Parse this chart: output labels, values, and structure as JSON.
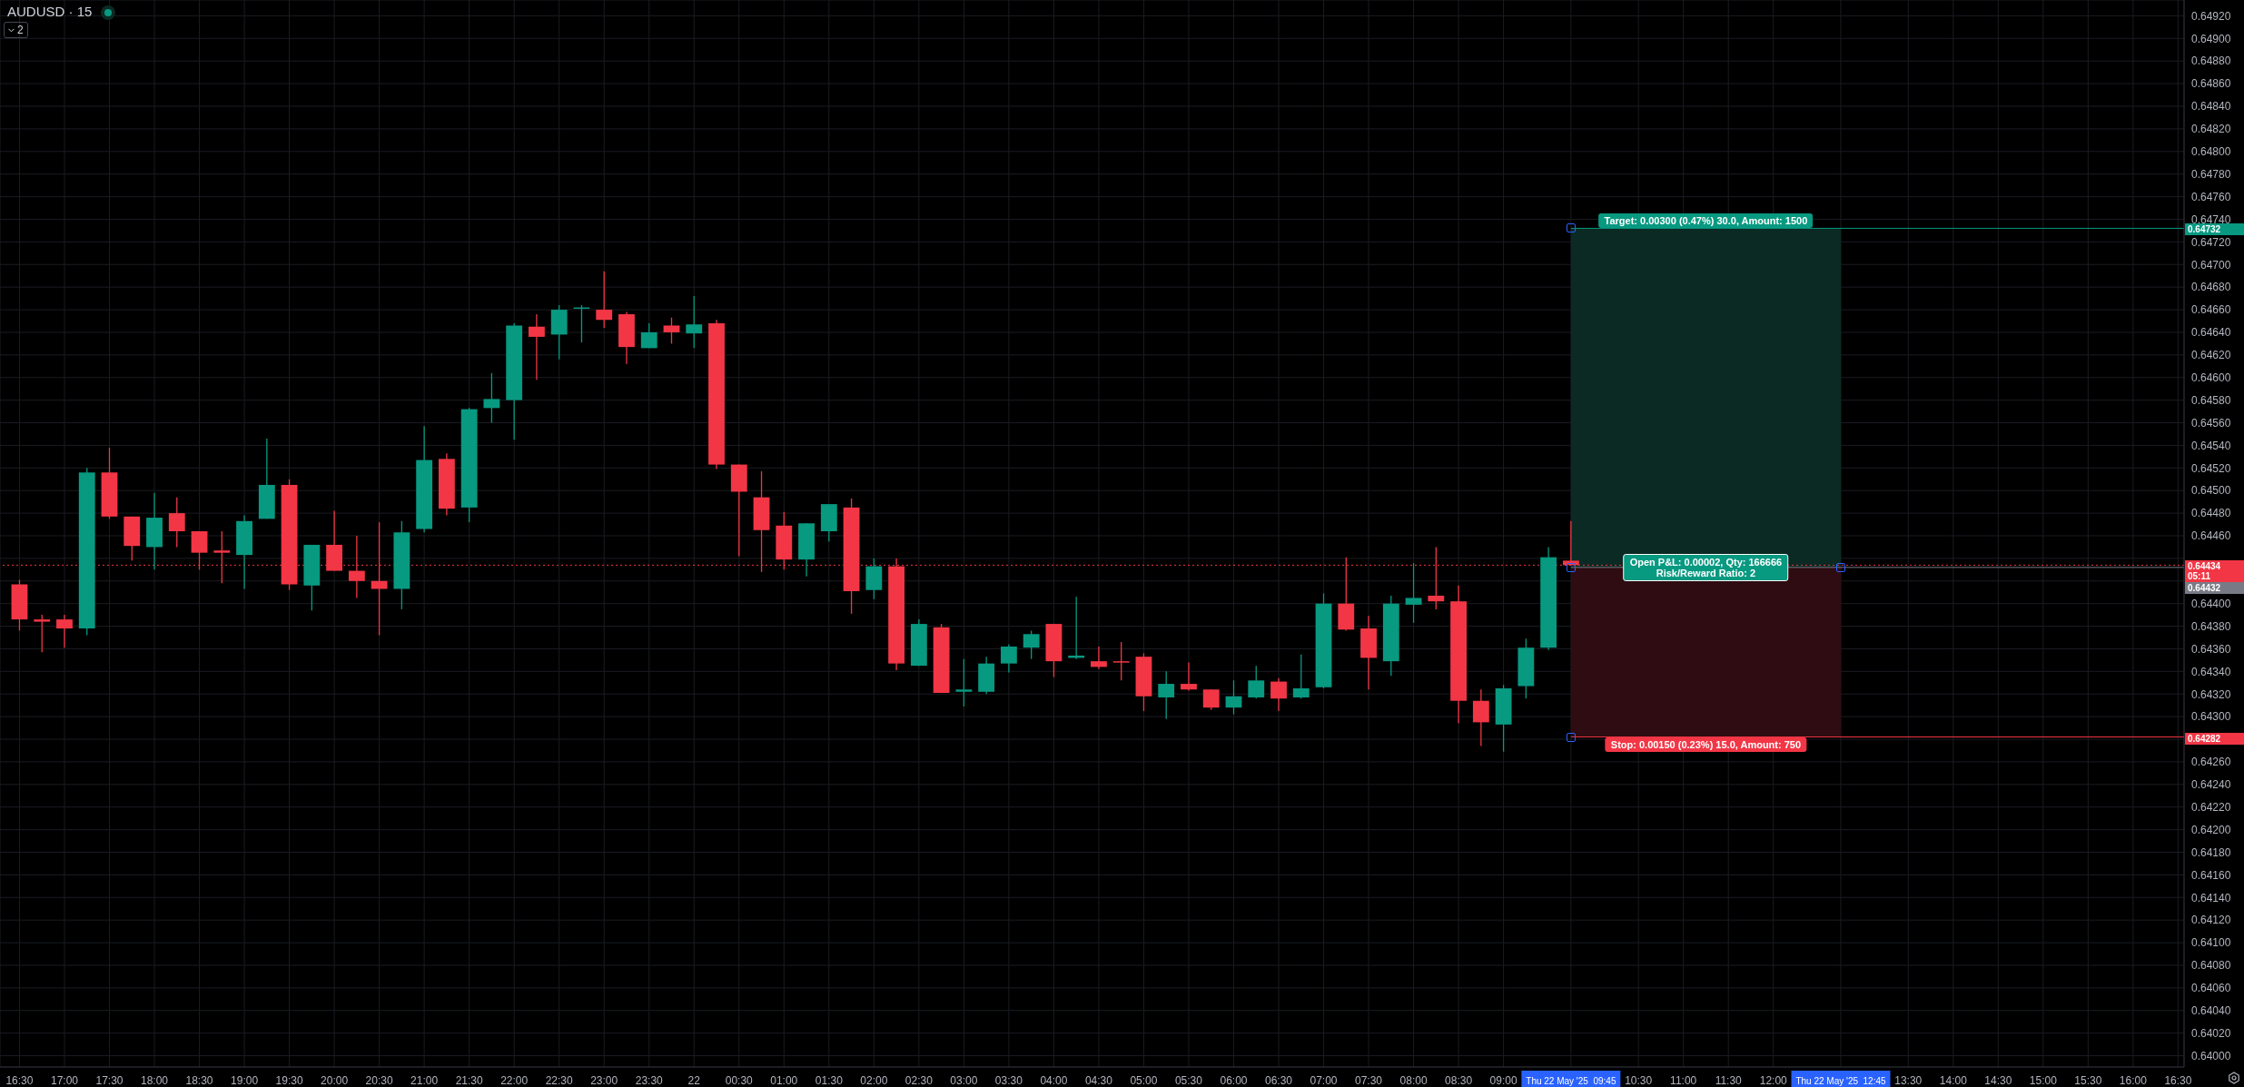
{
  "chart_data": {
    "type": "candlestick",
    "title": "AUDUSD · 15",
    "x": [
      "2025-05-21T16:30",
      "2025-05-21T16:45",
      "2025-05-21T17:00",
      "2025-05-21T17:15",
      "2025-05-21T17:30",
      "2025-05-21T17:45",
      "2025-05-21T18:00",
      "2025-05-21T18:15",
      "2025-05-21T18:30",
      "2025-05-21T18:45",
      "2025-05-21T19:00",
      "2025-05-21T19:15",
      "2025-05-21T19:30",
      "2025-05-21T19:45",
      "2025-05-21T20:00",
      "2025-05-21T20:15",
      "2025-05-21T20:30",
      "2025-05-21T20:45",
      "2025-05-21T21:00",
      "2025-05-21T21:15",
      "2025-05-21T21:30",
      "2025-05-21T21:45",
      "2025-05-21T22:00",
      "2025-05-21T22:15",
      "2025-05-21T22:30",
      "2025-05-21T22:45",
      "2025-05-21T23:00",
      "2025-05-21T23:15",
      "2025-05-21T23:30",
      "2025-05-21T23:45",
      "2025-05-22T00:00",
      "2025-05-22T00:15",
      "2025-05-22T00:30",
      "2025-05-22T00:45",
      "2025-05-22T01:00",
      "2025-05-22T01:15",
      "2025-05-22T01:30",
      "2025-05-22T01:45",
      "2025-05-22T02:00",
      "2025-05-22T02:15",
      "2025-05-22T02:30",
      "2025-05-22T02:45",
      "2025-05-22T03:00",
      "2025-05-22T03:15",
      "2025-05-22T03:30",
      "2025-05-22T03:45",
      "2025-05-22T04:00",
      "2025-05-22T04:15",
      "2025-05-22T04:30",
      "2025-05-22T04:45",
      "2025-05-22T05:00",
      "2025-05-22T05:15",
      "2025-05-22T05:30",
      "2025-05-22T05:45",
      "2025-05-22T06:00",
      "2025-05-22T06:15",
      "2025-05-22T06:30",
      "2025-05-22T06:45",
      "2025-05-22T07:00",
      "2025-05-22T07:15",
      "2025-05-22T07:30",
      "2025-05-22T07:45",
      "2025-05-22T08:00",
      "2025-05-22T08:15",
      "2025-05-22T08:30",
      "2025-05-22T08:45",
      "2025-05-22T09:00",
      "2025-05-22T09:15",
      "2025-05-22T09:30",
      "2025-05-22T09:45"
    ],
    "ohlc": [
      [
        0.64417,
        0.64421,
        0.64376,
        0.64386
      ],
      [
        0.64386,
        0.6439,
        0.64357,
        0.64384
      ],
      [
        0.64386,
        0.6439,
        0.64361,
        0.64378
      ],
      [
        0.64378,
        0.6452,
        0.64372,
        0.64516
      ],
      [
        0.64516,
        0.64538,
        0.64475,
        0.64477
      ],
      [
        0.64477,
        0.64477,
        0.64438,
        0.64451
      ],
      [
        0.6445,
        0.64498,
        0.6443,
        0.64476
      ],
      [
        0.6448,
        0.64494,
        0.6445,
        0.64464
      ],
      [
        0.64464,
        0.64464,
        0.6443,
        0.64445
      ],
      [
        0.64447,
        0.64464,
        0.64418,
        0.64445
      ],
      [
        0.64443,
        0.64478,
        0.64413,
        0.64473
      ],
      [
        0.64475,
        0.64546,
        0.64475,
        0.64505
      ],
      [
        0.64505,
        0.6451,
        0.64412,
        0.64417
      ],
      [
        0.64416,
        0.64452,
        0.64394,
        0.64452
      ],
      [
        0.64452,
        0.64482,
        0.64429,
        0.64429
      ],
      [
        0.64429,
        0.6446,
        0.64405,
        0.6442
      ],
      [
        0.6442,
        0.64472,
        0.64372,
        0.64413
      ],
      [
        0.64413,
        0.64473,
        0.64395,
        0.64463
      ],
      [
        0.64466,
        0.64557,
        0.64463,
        0.64527
      ],
      [
        0.64528,
        0.64533,
        0.64478,
        0.64484
      ],
      [
        0.64485,
        0.64573,
        0.64472,
        0.64572
      ],
      [
        0.64573,
        0.64604,
        0.6456,
        0.64581
      ],
      [
        0.6458,
        0.64648,
        0.64545,
        0.64646
      ],
      [
        0.64645,
        0.64656,
        0.64598,
        0.64636
      ],
      [
        0.64638,
        0.64664,
        0.64616,
        0.6466
      ],
      [
        0.64661,
        0.64664,
        0.64631,
        0.64662
      ],
      [
        0.6466,
        0.64694,
        0.64644,
        0.64651
      ],
      [
        0.64656,
        0.64658,
        0.64612,
        0.64627
      ],
      [
        0.64626,
        0.64648,
        0.64626,
        0.6464
      ],
      [
        0.64646,
        0.64653,
        0.6463,
        0.6464
      ],
      [
        0.64639,
        0.64672,
        0.64626,
        0.64647
      ],
      [
        0.64648,
        0.64651,
        0.64519,
        0.64523
      ],
      [
        0.64523,
        0.64523,
        0.64442,
        0.64499
      ],
      [
        0.64494,
        0.64517,
        0.64428,
        0.64465
      ],
      [
        0.64469,
        0.64481,
        0.6443,
        0.64439
      ],
      [
        0.64439,
        0.64471,
        0.64424,
        0.64471
      ],
      [
        0.64464,
        0.64488,
        0.64455,
        0.64488
      ],
      [
        0.64485,
        0.64493,
        0.64391,
        0.64411
      ],
      [
        0.64412,
        0.6444,
        0.64404,
        0.64433
      ],
      [
        0.64433,
        0.6444,
        0.64341,
        0.64347
      ],
      [
        0.64345,
        0.64386,
        0.64345,
        0.64382
      ],
      [
        0.64379,
        0.64382,
        0.64321,
        0.64321
      ],
      [
        0.64322,
        0.64351,
        0.64309,
        0.64324
      ],
      [
        0.64322,
        0.64353,
        0.6432,
        0.64347
      ],
      [
        0.64347,
        0.64364,
        0.64339,
        0.64362
      ],
      [
        0.64361,
        0.64376,
        0.64351,
        0.64373
      ],
      [
        0.64382,
        0.64382,
        0.64335,
        0.64349
      ],
      [
        0.64352,
        0.64406,
        0.64351,
        0.64354
      ],
      [
        0.64349,
        0.64362,
        0.64342,
        0.64344
      ],
      [
        0.64349,
        0.64366,
        0.64332,
        0.64348
      ],
      [
        0.64353,
        0.64356,
        0.64305,
        0.64318
      ],
      [
        0.64317,
        0.6434,
        0.64298,
        0.64329
      ],
      [
        0.64329,
        0.64348,
        0.64323,
        0.64324
      ],
      [
        0.64324,
        0.64324,
        0.64306,
        0.64308
      ],
      [
        0.64308,
        0.64332,
        0.64302,
        0.64318
      ],
      [
        0.64317,
        0.64345,
        0.64316,
        0.64332
      ],
      [
        0.64331,
        0.64334,
        0.64305,
        0.64316
      ],
      [
        0.64317,
        0.64355,
        0.64316,
        0.64325
      ],
      [
        0.64326,
        0.64409,
        0.64325,
        0.644
      ],
      [
        0.644,
        0.64441,
        0.64376,
        0.64377
      ],
      [
        0.64378,
        0.64389,
        0.64324,
        0.64352
      ],
      [
        0.64349,
        0.64407,
        0.64336,
        0.644
      ],
      [
        0.64399,
        0.64436,
        0.64383,
        0.64405
      ],
      [
        0.64407,
        0.6445,
        0.64395,
        0.64402
      ],
      [
        0.64402,
        0.64416,
        0.64294,
        0.64314
      ],
      [
        0.64314,
        0.64324,
        0.64274,
        0.64295
      ],
      [
        0.64293,
        0.64328,
        0.64269,
        0.64325
      ],
      [
        0.64327,
        0.64369,
        0.64316,
        0.64361
      ],
      [
        0.64361,
        0.6445,
        0.64359,
        0.64441
      ],
      [
        0.64438,
        0.64473,
        0.64434,
        0.64434
      ]
    ],
    "colors": [
      "#f23645",
      "#f23645",
      "#f23645",
      "#089981",
      "#f23645",
      "#f23645",
      "#089981",
      "#f23645",
      "#f23645",
      "#f23645",
      "#089981",
      "#089981",
      "#f23645",
      "#089981",
      "#f23645",
      "#f23645",
      "#f23645",
      "#089981",
      "#089981",
      "#f23645",
      "#089981",
      "#089981",
      "#089981",
      "#f23645",
      "#089981",
      "#089981",
      "#f23645",
      "#f23645",
      "#089981",
      "#f23645",
      "#089981",
      "#f23645",
      "#f23645",
      "#f23645",
      "#f23645",
      "#089981",
      "#089981",
      "#f23645",
      "#089981",
      "#f23645",
      "#089981",
      "#f23645",
      "#089981",
      "#089981",
      "#089981",
      "#089981",
      "#f23645",
      "#089981",
      "#f23645",
      "#f23645",
      "#f23645",
      "#089981",
      "#f23645",
      "#f23645",
      "#089981",
      "#089981",
      "#f23645",
      "#089981",
      "#089981",
      "#f23645",
      "#f23645",
      "#089981",
      "#089981",
      "#f23645",
      "#f23645",
      "#f23645",
      "#089981",
      "#089981",
      "#089981",
      "#f23645"
    ],
    "xlim": [
      "2025-05-21T16:17",
      "2025-05-22T16:34"
    ],
    "xticks": [
      {
        "value": "2025-05-21T16:30",
        "label": "16:30"
      },
      {
        "value": "2025-05-21T17:00",
        "label": "17:00"
      },
      {
        "value": "2025-05-21T17:30",
        "label": "17:30"
      },
      {
        "value": "2025-05-21T18:00",
        "label": "18:00"
      },
      {
        "value": "2025-05-21T18:30",
        "label": "18:30"
      },
      {
        "value": "2025-05-21T19:00",
        "label": "19:00"
      },
      {
        "value": "2025-05-21T19:30",
        "label": "19:30"
      },
      {
        "value": "2025-05-21T20:00",
        "label": "20:00"
      },
      {
        "value": "2025-05-21T20:30",
        "label": "20:30"
      },
      {
        "value": "2025-05-21T21:00",
        "label": "21:00"
      },
      {
        "value": "2025-05-21T21:30",
        "label": "21:30"
      },
      {
        "value": "2025-05-21T22:00",
        "label": "22:00"
      },
      {
        "value": "2025-05-21T22:30",
        "label": "22:30"
      },
      {
        "value": "2025-05-21T23:00",
        "label": "23:00"
      },
      {
        "value": "2025-05-21T23:30",
        "label": "23:30"
      },
      {
        "value": "2025-05-22T00:00",
        "label": "22"
      },
      {
        "value": "2025-05-22T00:30",
        "label": "00:30"
      },
      {
        "value": "2025-05-22T01:00",
        "label": "01:00"
      },
      {
        "value": "2025-05-22T01:30",
        "label": "01:30"
      },
      {
        "value": "2025-05-22T02:00",
        "label": "02:00"
      },
      {
        "value": "2025-05-22T02:30",
        "label": "02:30"
      },
      {
        "value": "2025-05-22T03:00",
        "label": "03:00"
      },
      {
        "value": "2025-05-22T03:30",
        "label": "03:30"
      },
      {
        "value": "2025-05-22T04:00",
        "label": "04:00"
      },
      {
        "value": "2025-05-22T04:30",
        "label": "04:30"
      },
      {
        "value": "2025-05-22T05:00",
        "label": "05:00"
      },
      {
        "value": "2025-05-22T05:30",
        "label": "05:30"
      },
      {
        "value": "2025-05-22T06:00",
        "label": "06:00"
      },
      {
        "value": "2025-05-22T06:30",
        "label": "06:30"
      },
      {
        "value": "2025-05-22T07:00",
        "label": "07:00"
      },
      {
        "value": "2025-05-22T07:30",
        "label": "07:30"
      },
      {
        "value": "2025-05-22T08:00",
        "label": "08:00"
      },
      {
        "value": "2025-05-22T08:30",
        "label": "08:30"
      },
      {
        "value": "2025-05-22T09:00",
        "label": "09:00"
      },
      {
        "value": "2025-05-22T09:45",
        "label": "Thu 22 May '25  09:45"
      },
      {
        "value": "2025-05-22T10:30",
        "label": "10:30"
      },
      {
        "value": "2025-05-22T11:00",
        "label": "11:00"
      },
      {
        "value": "2025-05-22T11:30",
        "label": "11:30"
      },
      {
        "value": "2025-05-22T12:00",
        "label": "12:00"
      },
      {
        "value": "2025-05-22T12:45",
        "label": "Thu 22 May '25  12:45"
      },
      {
        "value": "2025-05-22T13:30",
        "label": "13:30"
      },
      {
        "value": "2025-05-22T14:00",
        "label": "14:00"
      },
      {
        "value": "2025-05-22T14:30",
        "label": "14:30"
      },
      {
        "value": "2025-05-22T15:00",
        "label": "15:00"
      },
      {
        "value": "2025-05-22T15:30",
        "label": "15:30"
      },
      {
        "value": "2025-05-22T16:00",
        "label": "16:00"
      },
      {
        "value": "2025-05-22T16:30",
        "label": "16:30"
      }
    ],
    "ylim": [
      0.6399,
      0.64934
    ],
    "yticks": [
      {
        "value": 0.64,
        "label": "0.64000"
      },
      {
        "value": 0.6402,
        "label": "0.64020"
      },
      {
        "value": 0.6404,
        "label": "0.64040"
      },
      {
        "value": 0.6406,
        "label": "0.64060"
      },
      {
        "value": 0.6408,
        "label": "0.64080"
      },
      {
        "value": 0.641,
        "label": "0.64100"
      },
      {
        "value": 0.6412,
        "label": "0.64120"
      },
      {
        "value": 0.6414,
        "label": "0.64140"
      },
      {
        "value": 0.6416,
        "label": "0.64160"
      },
      {
        "value": 0.6418,
        "label": "0.64180"
      },
      {
        "value": 0.642,
        "label": "0.64200"
      },
      {
        "value": 0.6422,
        "label": "0.64220"
      },
      {
        "value": 0.6424,
        "label": "0.64240"
      },
      {
        "value": 0.6426,
        "label": "0.64260"
      },
      {
        "value": 0.6428,
        "label": null
      },
      {
        "value": 0.643,
        "label": "0.64300"
      },
      {
        "value": 0.6432,
        "label": "0.64320"
      },
      {
        "value": 0.6434,
        "label": "0.64340"
      },
      {
        "value": 0.6436,
        "label": "0.64360"
      },
      {
        "value": 0.6438,
        "label": "0.64380"
      },
      {
        "value": 0.644,
        "label": "0.64400"
      },
      {
        "value": 0.6442,
        "label": null
      },
      {
        "value": 0.6444,
        "label": null
      },
      {
        "value": 0.6446,
        "label": "0.64460"
      },
      {
        "value": 0.6448,
        "label": "0.64480"
      },
      {
        "value": 0.645,
        "label": "0.64500"
      },
      {
        "value": 0.6452,
        "label": "0.64520"
      },
      {
        "value": 0.6454,
        "label": "0.64540"
      },
      {
        "value": 0.6456,
        "label": "0.64560"
      },
      {
        "value": 0.6458,
        "label": "0.64580"
      },
      {
        "value": 0.646,
        "label": "0.64600"
      },
      {
        "value": 0.6462,
        "label": "0.64620"
      },
      {
        "value": 0.6464,
        "label": "0.64640"
      },
      {
        "value": 0.6466,
        "label": "0.64660"
      },
      {
        "value": 0.6468,
        "label": "0.64680"
      },
      {
        "value": 0.647,
        "label": "0.64700"
      },
      {
        "value": 0.6472,
        "label": "0.64720"
      },
      {
        "value": 0.6474,
        "label": "0.64740"
      },
      {
        "value": 0.6476,
        "label": "0.64760"
      },
      {
        "value": 0.6478,
        "label": "0.64780"
      },
      {
        "value": 0.648,
        "label": "0.64800"
      },
      {
        "value": 0.6482,
        "label": "0.64820"
      },
      {
        "value": 0.6484,
        "label": "0.64840"
      },
      {
        "value": 0.6486,
        "label": "0.64860"
      },
      {
        "value": 0.6488,
        "label": "0.64880"
      },
      {
        "value": 0.649,
        "label": "0.64900"
      },
      {
        "value": 0.6492,
        "label": "0.64920"
      }
    ],
    "grid": true,
    "bands": [
      {
        "axis": "y",
        "from": 0.64432,
        "to": 0.64732,
        "color": "#0a2a23"
      },
      {
        "axis": "y",
        "from": 0.64282,
        "to": 0.64432,
        "color": "#2e0c12"
      }
    ],
    "ref_lines": [
      {
        "axis": "y",
        "value": 0.64434,
        "label": "0.64434\n05:11",
        "color": "#f23645",
        "line_style": "dotted"
      },
      {
        "axis": "y",
        "value": 0.64732,
        "label": "0.64732",
        "color": "#089981",
        "line_style": "solid"
      },
      {
        "axis": "y",
        "value": 0.64432,
        "label": "0.64432",
        "color": "#787b86",
        "line_style": "solid"
      },
      {
        "axis": "y",
        "value": 0.64282,
        "label": "0.64282",
        "color": "#f23645",
        "line_style": "solid"
      }
    ],
    "annotations": [
      "2",
      {
        "text": "Target: 0.00300 (0.47%) 30.0, Amount: 1500",
        "x": "2025-05-22T11:15",
        "y": 0.64732
      },
      {
        "text": "Open P&L: 0.00002, Qty: 166666\nRisk/Reward Ratio: 2",
        "x": "2025-05-22T11:15",
        "y": 0.64432
      },
      {
        "text": "Stop: 0.00150 (0.23%) 15.0, Amount: 750",
        "x": "2025-05-22T11:15",
        "y": 0.64282
      }
    ]
  }
}
